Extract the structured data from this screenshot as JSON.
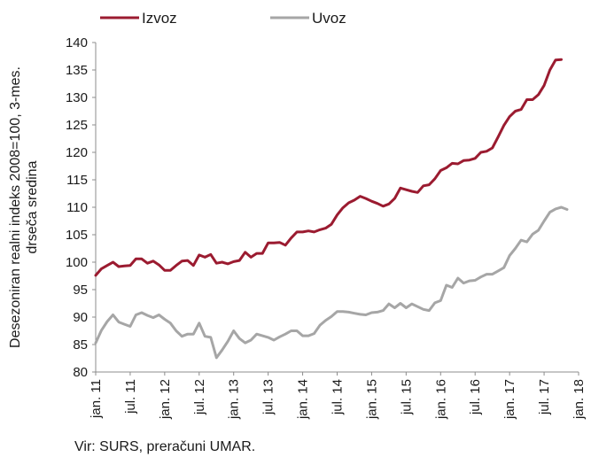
{
  "source_note": "Vir: SURS, preračuni UMAR.",
  "chart_data": {
    "type": "line",
    "ylabel": "Desezoniran realni indeks 2008=100, 3-mes. drseča sredina",
    "ylabel_lines": [
      "Desezoniran realni indeks 2008=100, 3-mes.",
      "drseča sredina"
    ],
    "xlabel": "",
    "ylim": [
      80,
      140
    ],
    "yticks": [
      80,
      85,
      90,
      95,
      100,
      105,
      110,
      115,
      120,
      125,
      130,
      135,
      140
    ],
    "x_start": "2011-01",
    "x_end": "2018-01",
    "xtick_labels": [
      "jan. 11",
      "jul. 11",
      "jan. 12",
      "jul. 12",
      "jan. 13",
      "jul. 13",
      "jan. 14",
      "jul. 14",
      "jan. 15",
      "jul. 15",
      "jan. 16",
      "jul. 16",
      "jan. 17",
      "jul. 17",
      "jan. 18"
    ],
    "grid": false,
    "legend_position": "top-left",
    "series": [
      {
        "name": "Izvoz",
        "color": "#9b1b30",
        "start": "2011-01",
        "values": [
          97.6,
          98.8,
          99.4,
          100.0,
          99.2,
          99.3,
          99.4,
          100.6,
          100.6,
          99.8,
          100.2,
          99.5,
          98.5,
          98.5,
          99.4,
          100.2,
          100.3,
          99.4,
          101.3,
          100.9,
          101.4,
          99.8,
          100.0,
          99.7,
          100.1,
          100.3,
          101.8,
          100.9,
          101.6,
          101.6,
          103.5,
          103.5,
          103.6,
          103.1,
          104.4,
          105.5,
          105.5,
          105.7,
          105.5,
          105.9,
          106.2,
          106.9,
          108.6,
          109.9,
          110.8,
          111.3,
          112.0,
          111.6,
          111.1,
          110.7,
          110.2,
          110.6,
          111.6,
          113.5,
          113.2,
          112.9,
          112.7,
          113.9,
          114.1,
          115.2,
          116.7,
          117.2,
          118.0,
          117.9,
          118.5,
          118.6,
          118.9,
          120.0,
          120.2,
          120.8,
          122.8,
          124.9,
          126.5,
          127.5,
          127.8,
          129.6,
          129.6,
          130.5,
          132.2,
          135.0,
          136.8,
          136.9
        ]
      },
      {
        "name": "Uvoz",
        "color": "#a6a6a6",
        "start": "2011-01",
        "values": [
          85.3,
          87.6,
          89.2,
          90.4,
          89.1,
          88.7,
          88.3,
          90.4,
          90.8,
          90.3,
          89.9,
          90.4,
          89.6,
          88.9,
          87.5,
          86.5,
          86.9,
          86.9,
          88.9,
          86.5,
          86.3,
          82.6,
          84.0,
          85.6,
          87.5,
          86.1,
          85.3,
          85.8,
          86.9,
          86.6,
          86.3,
          85.8,
          86.4,
          86.9,
          87.5,
          87.5,
          86.6,
          86.6,
          87.0,
          88.5,
          89.4,
          90.1,
          91.0,
          91.0,
          90.9,
          90.7,
          90.5,
          90.4,
          90.8,
          90.9,
          91.2,
          92.4,
          91.7,
          92.5,
          91.7,
          92.4,
          91.9,
          91.4,
          91.2,
          92.6,
          93.0,
          95.8,
          95.4,
          97.1,
          96.2,
          96.6,
          96.7,
          97.3,
          97.8,
          97.8,
          98.4,
          99.0,
          101.2,
          102.5,
          104.0,
          103.7,
          105.1,
          105.8,
          107.5,
          109.1,
          109.7,
          110.0,
          109.6
        ]
      }
    ]
  }
}
